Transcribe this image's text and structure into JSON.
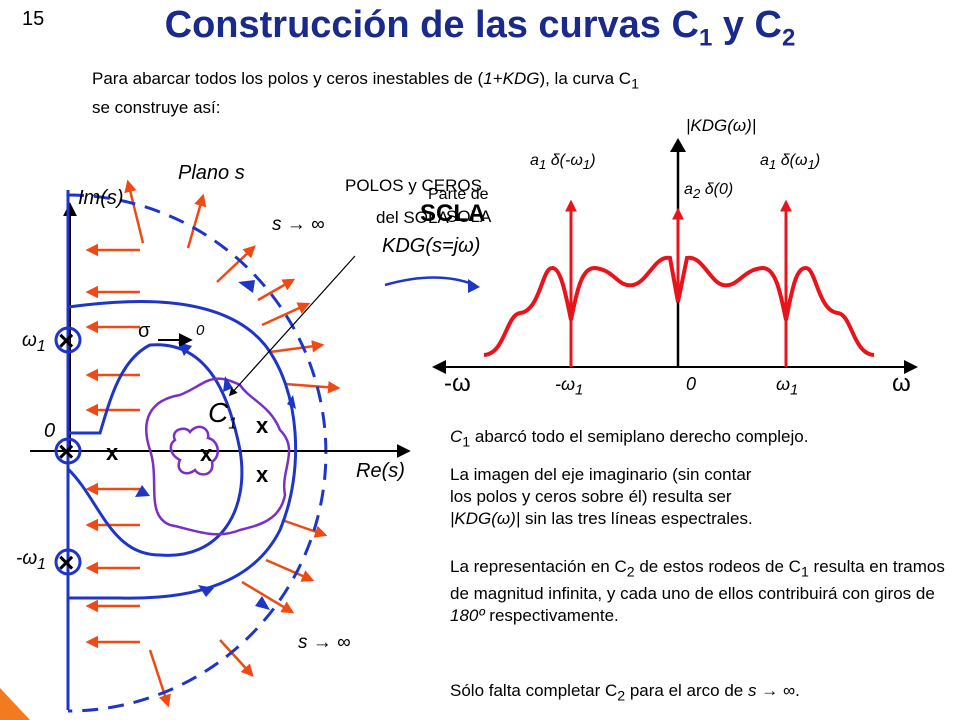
{
  "slide_number": "15",
  "title": {
    "prefix": "Construcción de las curvas C",
    "sub1": "1",
    "middle": " y C",
    "sub2": "2"
  },
  "intro": {
    "line1_a": "Para abarcar todos los polos y ceros inestables de (",
    "line1_math": "1+KDG",
    "line1_b": "), la curva C",
    "line1_sub": "1",
    "line2": "se construye así:"
  },
  "splane": {
    "plane_label": "Plano s",
    "im_axis": "Im(s)",
    "re_axis": "Re(s)",
    "origin": "0",
    "omega1": "ω",
    "omega1_sub": "1",
    "neg_omega1": "-ω",
    "neg_omega1_sub": "1",
    "s_inf_top": "s → ∞",
    "s_inf_bottom": "s → ∞",
    "sigma": "σ",
    "sigma_to": "0",
    "c1_label": "C",
    "c1_sub": "1",
    "zero_marks": [
      "x",
      "x",
      "x",
      "x"
    ]
  },
  "overlay": {
    "polos_y_ceros": "POLOS y CEROS",
    "parte_de": "Parte de",
    "del_sola": "del SOLA",
    "sola_word": "SOLA",
    "sola_big": "SCLA",
    "mapping": "KDG(s=jω)"
  },
  "spectrum": {
    "ylabel": "|KDG(ω)|",
    "a1_neg": "a",
    "a1_neg_sub": "1",
    "a1_neg_rest": " δ(-ω",
    "a1_neg_sub2": "1",
    "a1_pos": "a",
    "a1_pos_sub": "1",
    "a1_pos_rest": " δ(ω",
    "a1_pos_sub2": "1",
    "a2": "a",
    "a2_sub": "2",
    "a2_rest": " δ(0)",
    "neg_omega": "-ω",
    "pos_omega": "ω",
    "tick_neg": "-ω",
    "tick_neg_sub": "1",
    "tick_zero": "0",
    "tick_pos": "ω",
    "tick_pos_sub": "1",
    "colors": {
      "curve": "#e8141c",
      "axis": "#000000"
    }
  },
  "paragraphs": {
    "p1_a": "C",
    "p1_sub": "1",
    "p1_b": " abarcó todo el semiplano derecho complejo.",
    "p2_a": "La imagen del eje imaginario (sin contar los polos y ceros sobre él) resulta ser ",
    "p2_math": "|KDG(ω)|",
    "p2_b": " sin las tres líneas espectrales.",
    "p3_a": "La representación en C",
    "p3_sub": "2",
    "p3_b": " de estos rodeos de C",
    "p3_sub2": "1",
    "p3_c": " resulta en tramos de magnitud infinita, y cada uno de ellos contribuirá con giros de ",
    "p3_math": "180º",
    "p3_d": " respectivamente.",
    "p4_a": "Sólo falta completar C",
    "p4_sub": "2",
    "p4_b": " para el arco de ",
    "p4_math": "s → ∞",
    "p4_c": "."
  },
  "colors": {
    "title": "#1a2a8a",
    "contour": "#1f35c8",
    "inner_contour": "#7a2fc8",
    "arrows": "#f04a14",
    "corner": "#f47a20"
  }
}
